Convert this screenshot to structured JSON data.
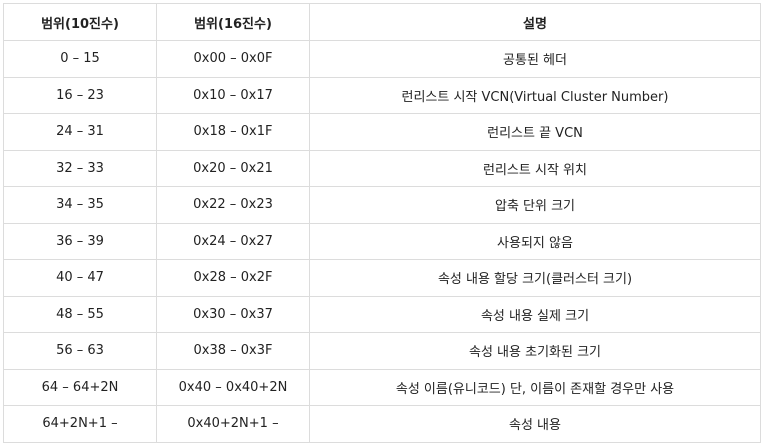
{
  "table": {
    "headers": [
      "범위(10진수)",
      "범위(16진수)",
      "설명"
    ],
    "rows": [
      [
        "0 – 15",
        "0x00 – 0x0F",
        "공통된 헤더"
      ],
      [
        "16 – 23",
        "0x10 – 0x17",
        "런리스트 시작 VCN(Virtual Cluster Number)"
      ],
      [
        "24 – 31",
        "0x18 – 0x1F",
        "런리스트 끝 VCN"
      ],
      [
        "32 – 33",
        "0x20 – 0x21",
        "런리스트 시작 위치"
      ],
      [
        "34 – 35",
        "0x22 – 0x23",
        "압축 단위 크기"
      ],
      [
        "36 – 39",
        "0x24 – 0x27",
        "사용되지 않음"
      ],
      [
        "40 – 47",
        "0x28 – 0x2F",
        "속성 내용 할당 크기(클러스터 크기)"
      ],
      [
        "48 – 55",
        "0x30 – 0x37",
        "속성 내용 실제 크기"
      ],
      [
        "56 – 63",
        "0x38 – 0x3F",
        "속성 내용 초기화된 크기"
      ],
      [
        "64 – 64+2N",
        "0x40 – 0x40+2N",
        "속성 이름(유니코드) 단, 이름이 존재할 경우만 사용"
      ],
      [
        "64+2N+1 –",
        "0x40+2N+1 –",
        "속성 내용"
      ]
    ]
  }
}
